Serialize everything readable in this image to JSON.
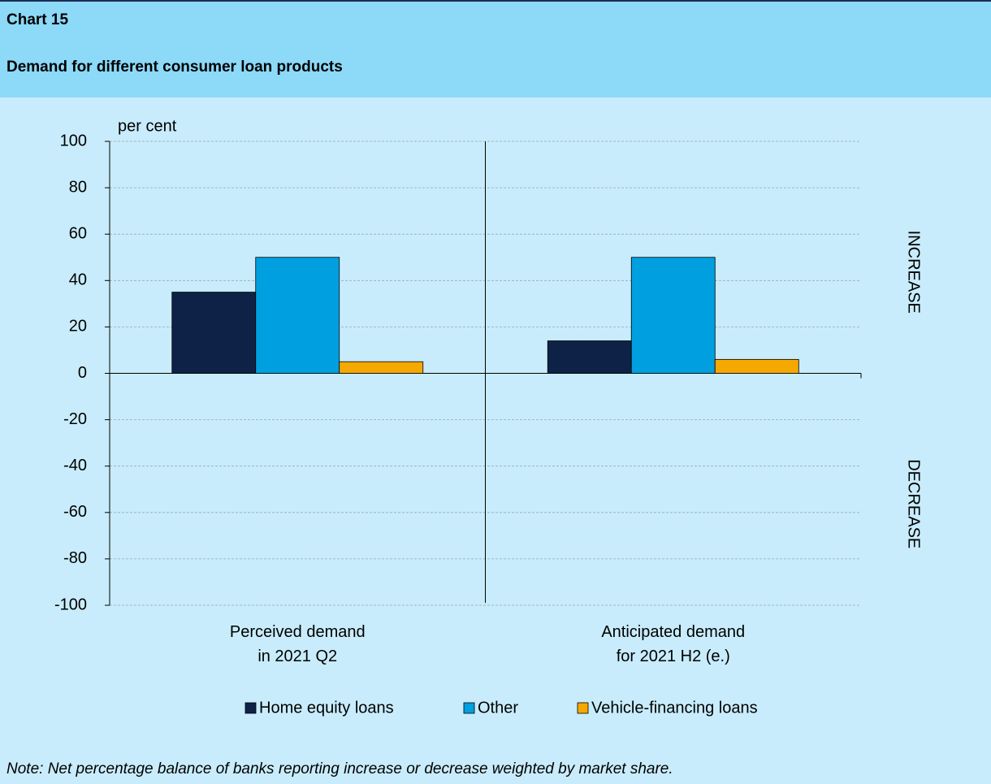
{
  "header": {
    "label": "Chart 15",
    "title": "Demand for different consumer loan products"
  },
  "chart_data": {
    "type": "bar",
    "y_label": "per cent",
    "categories": [
      "Perceived demand\nin 2021 Q2",
      "Anticipated demand\nfor 2021 H2 (e.)"
    ],
    "series": [
      {
        "name": "Home equity loans",
        "color": "#0e2248",
        "values": [
          35,
          14
        ]
      },
      {
        "name": "Other",
        "color": "#00a0e0",
        "values": [
          50,
          50
        ]
      },
      {
        "name": "Vehicle-financing loans",
        "color": "#f5a800",
        "values": [
          5,
          6
        ]
      }
    ],
    "ylim": [
      -100,
      100
    ],
    "yticks": [
      -100,
      -80,
      -60,
      -40,
      -20,
      0,
      20,
      40,
      60,
      80,
      100
    ],
    "grid": true,
    "legend": "bottom",
    "annotations": [
      "INCREASE",
      "DECREASE"
    ]
  },
  "note": "Note: Net percentage balance of banks reporting increase or decrease weighted by market share."
}
